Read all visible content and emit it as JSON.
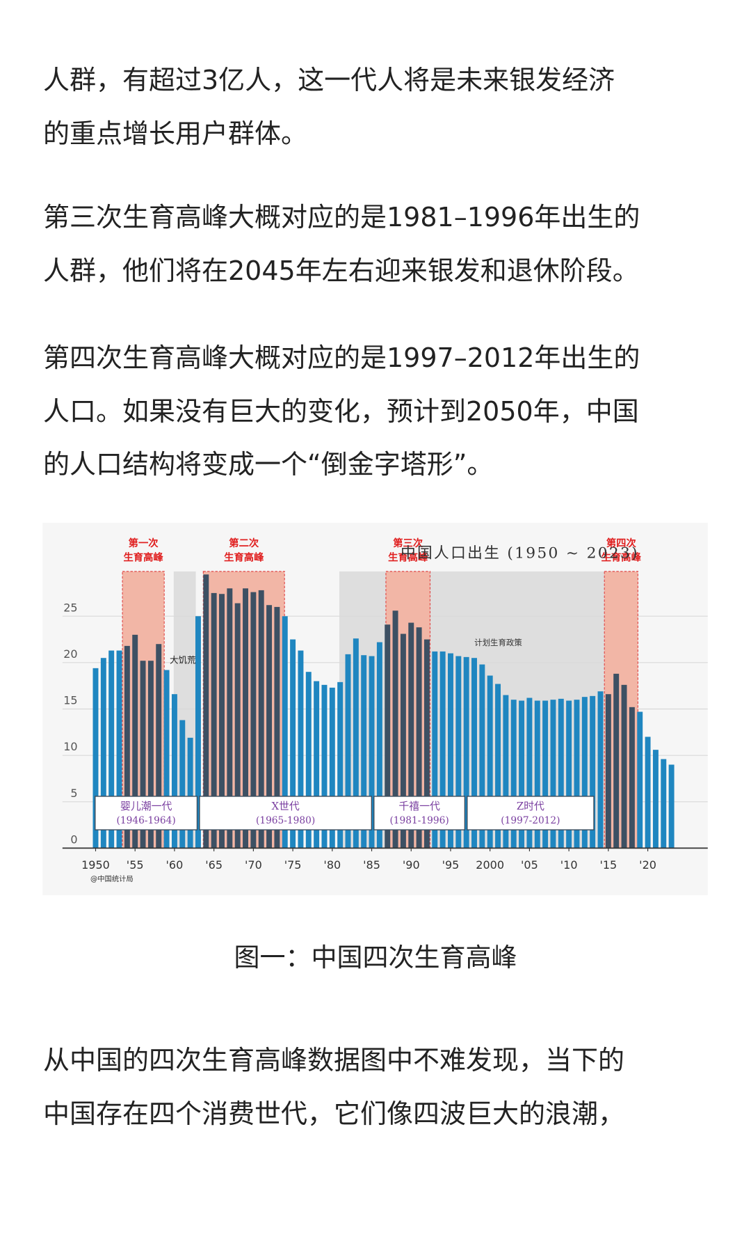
{
  "paragraphs": [
    {
      "lines": [
        "人群，有超过3亿人，这一代人将是未来银发经济",
        "的重点增长用户群体。"
      ]
    },
    {
      "lines": [
        "第三次生育高峰大概对应的是1981–1996年出生的",
        "人群，他们将在2045年左右迎来银发和退休阶段。"
      ]
    },
    {
      "lines": [
        "第四次生育高峰大概对应的是1997–2012年出生的",
        "人口。如果没有巨大的变化，预计到2050年，中国",
        "的人口结构将变成一个“倒金字塔形”。"
      ]
    },
    {
      "lines": [
        "从中国的四次生育高峰数据图中不难发现，当下的",
        "中国存在四个消费世代，它们像四波巨大的浪潮，"
      ]
    }
  ],
  "caption": "图一：中国四次生育高峰",
  "chart_data": {
    "type": "bar",
    "title": "中国人口出生 (1950 ~ 2023)",
    "source": "@中国统计局",
    "color": "#1f86c0",
    "peak_color": "#3d5063",
    "x": [
      1950,
      1951,
      1952,
      1953,
      1954,
      1955,
      1956,
      1957,
      1958,
      1959,
      1960,
      1961,
      1962,
      1963,
      1964,
      1965,
      1966,
      1967,
      1968,
      1969,
      1970,
      1971,
      1972,
      1973,
      1974,
      1975,
      1976,
      1977,
      1978,
      1979,
      1980,
      1981,
      1982,
      1983,
      1984,
      1985,
      1986,
      1987,
      1988,
      1989,
      1990,
      1991,
      1992,
      1993,
      1994,
      1995,
      1996,
      1997,
      1998,
      1999,
      2000,
      2001,
      2002,
      2003,
      2004,
      2005,
      2006,
      2007,
      2008,
      2009,
      2010,
      2011,
      2012,
      2013,
      2014,
      2015,
      2016,
      2017,
      2018,
      2019,
      2020,
      2021,
      2022,
      2023
    ],
    "values": [
      19.4,
      20.5,
      21.3,
      21.3,
      21.8,
      23.0,
      20.2,
      20.2,
      22.0,
      19.2,
      16.6,
      13.8,
      11.9,
      25.0,
      29.5,
      27.5,
      27.4,
      28.0,
      26.4,
      28.0,
      27.6,
      27.8,
      26.2,
      26.0,
      25.0,
      22.5,
      21.3,
      19.0,
      18.0,
      17.6,
      17.3,
      17.9,
      20.9,
      22.6,
      20.8,
      20.7,
      22.2,
      24.1,
      25.6,
      23.1,
      24.3,
      23.8,
      22.5,
      21.2,
      21.2,
      21.0,
      20.7,
      20.6,
      20.5,
      19.8,
      18.6,
      17.7,
      16.5,
      16.0,
      15.9,
      16.2,
      15.9,
      15.9,
      16.0,
      16.1,
      15.9,
      16.0,
      16.3,
      16.4,
      16.9,
      16.6,
      18.8,
      17.6,
      15.2,
      14.7,
      12.0,
      10.6,
      9.6,
      9.0
    ],
    "xlim": [
      1945.8,
      2027.6
    ],
    "ylim": [
      0,
      30
    ],
    "yticks": [
      0,
      5,
      10,
      15,
      20,
      25
    ],
    "grid": true,
    "xticks": [
      {
        "value": 1950,
        "label": "1950"
      },
      {
        "value": 1955,
        "label": "'55"
      },
      {
        "value": 1960,
        "label": "'60"
      },
      {
        "value": 1965,
        "label": "'65"
      },
      {
        "value": 1970,
        "label": "'70"
      },
      {
        "value": 1975,
        "label": "'75"
      },
      {
        "value": 1980,
        "label": "'80"
      },
      {
        "value": 1985,
        "label": "'85"
      },
      {
        "value": 1990,
        "label": "'90"
      },
      {
        "value": 1995,
        "label": "'95"
      },
      {
        "value": 2000,
        "label": "2000"
      },
      {
        "value": 2005,
        "label": "'05"
      },
      {
        "value": 2010,
        "label": "'10"
      },
      {
        "value": 2015,
        "label": "'15"
      },
      {
        "value": 2020,
        "label": "'20"
      }
    ],
    "shaded": [
      {
        "label": "大饥荒",
        "span": [
          1959.9,
          1962.7
        ]
      },
      {
        "label": "计划生育政策",
        "span": [
          1980.9,
          2016.8
        ]
      }
    ],
    "peaks": [
      {
        "label": [
          "第一次",
          "生育高峰"
        ],
        "span": [
          1953.4,
          1958.7
        ]
      },
      {
        "label": [
          "第二次",
          "生育高峰"
        ],
        "span": [
          1963.65,
          1973.95
        ]
      },
      {
        "label": [
          "第三次",
          "生育高峰"
        ],
        "span": [
          1986.8,
          1992.4
        ]
      },
      {
        "label": [
          "第四次",
          "生育高峰"
        ],
        "span": [
          2014.5,
          2018.75
        ]
      }
    ],
    "generations": [
      {
        "name": "婴儿潮一代",
        "years": "(1946-1964)"
      },
      {
        "name": "X世代",
        "years": "(1965-1980)"
      },
      {
        "name": "千禧一代",
        "years": "(1981-1996)"
      },
      {
        "name": "Z时代",
        "years": "(1997-2012)"
      }
    ]
  }
}
